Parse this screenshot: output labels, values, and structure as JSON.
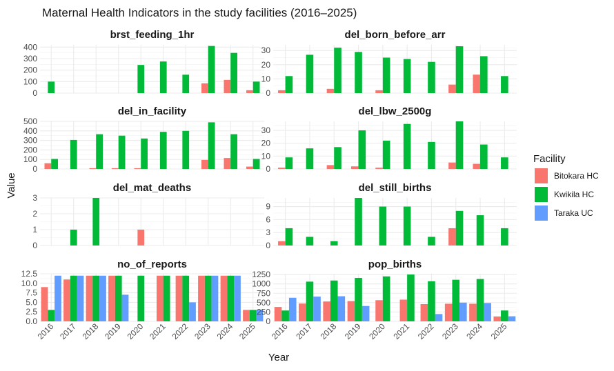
{
  "chart_data": {
    "type": "bar",
    "title": "Maternal Health Indicators in the study facilities (2016–2025)",
    "xlabel": "Year",
    "ylabel": "Value",
    "categories": [
      "2016",
      "2017",
      "2018",
      "2019",
      "2020",
      "2021",
      "2022",
      "2023",
      "2024",
      "2025"
    ],
    "legend": {
      "title": "Facility",
      "position": "right",
      "items": [
        {
          "name": "Bitokara HC",
          "color": "#F8766D"
        },
        {
          "name": "Kwikila HC",
          "color": "#00BA38"
        },
        {
          "name": "Taraka UC",
          "color": "#619CFF"
        }
      ]
    },
    "grid": true,
    "panels": [
      {
        "name": "brst_feeding_1hr",
        "ylim": [
          0,
          420
        ],
        "yticks": [
          0,
          100,
          200,
          300,
          400
        ],
        "yticklabels": [
          "0",
          "100",
          "200",
          "300",
          "400"
        ],
        "series": [
          {
            "name": "Bitokara HC",
            "values": [
              null,
              null,
              null,
              null,
              null,
              null,
              null,
              85,
              115,
              25
            ]
          },
          {
            "name": "Kwikila HC",
            "values": [
              100,
              null,
              null,
              null,
              245,
              275,
              160,
              410,
              350,
              100
            ]
          },
          {
            "name": "Taraka UC",
            "values": [
              null,
              null,
              null,
              null,
              null,
              null,
              null,
              null,
              null,
              null
            ]
          }
        ]
      },
      {
        "name": "del_born_before_arr",
        "ylim": [
          0,
          34
        ],
        "yticks": [
          0,
          10,
          20,
          30
        ],
        "yticklabels": [
          "0",
          "10",
          "20",
          "30"
        ],
        "series": [
          {
            "name": "Bitokara HC",
            "values": [
              2,
              null,
              3,
              null,
              2,
              null,
              null,
              6,
              13,
              null
            ]
          },
          {
            "name": "Kwikila HC",
            "values": [
              12,
              27,
              32,
              29,
              25,
              24,
              22,
              33,
              26,
              12
            ]
          },
          {
            "name": "Taraka UC",
            "values": [
              null,
              null,
              null,
              null,
              null,
              null,
              null,
              null,
              null,
              null
            ]
          }
        ]
      },
      {
        "name": "del_in_facility",
        "ylim": [
          0,
          500
        ],
        "yticks": [
          0,
          100,
          200,
          300,
          400,
          500
        ],
        "yticklabels": [
          "0",
          "100",
          "200",
          "300",
          "400",
          "500"
        ],
        "series": [
          {
            "name": "Bitokara HC",
            "values": [
              60,
              null,
              8,
              8,
              8,
              null,
              null,
              95,
              115,
              25
            ]
          },
          {
            "name": "Kwikila HC",
            "values": [
              105,
              305,
              365,
              350,
              320,
              390,
              400,
              490,
              365,
              105
            ]
          },
          {
            "name": "Taraka UC",
            "values": [
              null,
              null,
              null,
              null,
              null,
              null,
              null,
              null,
              null,
              null
            ]
          }
        ]
      },
      {
        "name": "del_lbw_2500g",
        "ylim": [
          0,
          37
        ],
        "yticks": [
          0,
          10,
          20,
          30
        ],
        "yticklabels": [
          "0",
          "10",
          "20",
          "30"
        ],
        "series": [
          {
            "name": "Bitokara HC",
            "values": [
              1,
              null,
              3,
              2,
              1,
              null,
              null,
              5,
              4,
              null
            ]
          },
          {
            "name": "Kwikila HC",
            "values": [
              9,
              16,
              17,
              30,
              22,
              35,
              21,
              37,
              19,
              9
            ]
          },
          {
            "name": "Taraka UC",
            "values": [
              null,
              null,
              null,
              null,
              null,
              null,
              null,
              null,
              null,
              null
            ]
          }
        ]
      },
      {
        "name": "del_mat_deaths",
        "ylim": [
          0,
          3
        ],
        "yticks": [
          0,
          1,
          2,
          3
        ],
        "yticklabels": [
          "0",
          "1",
          "2",
          "3"
        ],
        "series": [
          {
            "name": "Bitokara HC",
            "values": [
              null,
              null,
              null,
              null,
              1,
              null,
              null,
              null,
              null,
              null
            ]
          },
          {
            "name": "Kwikila HC",
            "values": [
              null,
              1,
              3,
              null,
              null,
              null,
              null,
              null,
              null,
              null
            ]
          },
          {
            "name": "Taraka UC",
            "values": [
              null,
              null,
              null,
              null,
              null,
              null,
              null,
              null,
              null,
              null
            ]
          }
        ]
      },
      {
        "name": "del_still_births",
        "ylim": [
          0,
          11
        ],
        "yticks": [
          0,
          3,
          6,
          9
        ],
        "yticklabels": [
          "0",
          "3",
          "6",
          "9"
        ],
        "series": [
          {
            "name": "Bitokara HC",
            "values": [
              1,
              null,
              null,
              null,
              null,
              null,
              null,
              4,
              null,
              null
            ]
          },
          {
            "name": "Kwikila HC",
            "values": [
              4,
              2,
              1,
              11,
              9,
              9,
              2,
              8,
              7,
              4
            ]
          },
          {
            "name": "Taraka UC",
            "values": [
              null,
              null,
              null,
              null,
              null,
              null,
              null,
              null,
              null,
              null
            ]
          }
        ]
      },
      {
        "name": "no_of_reports",
        "ylim": [
          0,
          12.5
        ],
        "yticks": [
          0,
          2.5,
          5,
          7.5,
          10,
          12.5
        ],
        "yticklabels": [
          "0.0",
          "2.5",
          "5.0",
          "7.5",
          "10.0",
          "12.5"
        ],
        "series": [
          {
            "name": "Bitokara HC",
            "values": [
              9,
              11,
              12,
              12,
              null,
              12,
              12,
              12,
              12,
              3
            ]
          },
          {
            "name": "Kwikila HC",
            "values": [
              3,
              12,
              12,
              12,
              12,
              12,
              12,
              12,
              12,
              3
            ]
          },
          {
            "name": "Taraka UC",
            "values": [
              12,
              12,
              12,
              7,
              null,
              null,
              5,
              12,
              12,
              3
            ]
          }
        ]
      },
      {
        "name": "pop_births",
        "ylim": [
          0,
          1270
        ],
        "yticks": [
          0,
          250,
          500,
          750,
          1000,
          1250
        ],
        "yticklabels": [
          "0",
          "250",
          "500",
          "750",
          "1000",
          "1250"
        ],
        "series": [
          {
            "name": "Bitokara HC",
            "values": [
              385,
              475,
              530,
              540,
              565,
              580,
              460,
              470,
              470,
              130
            ]
          },
          {
            "name": "Kwikila HC",
            "values": [
              290,
              1060,
              1090,
              1160,
              1200,
              1250,
              1070,
              1110,
              1130,
              290
            ]
          },
          {
            "name": "Taraka UC",
            "values": [
              630,
              660,
              670,
              410,
              null,
              null,
              195,
              500,
              490,
              135
            ]
          }
        ]
      }
    ]
  }
}
